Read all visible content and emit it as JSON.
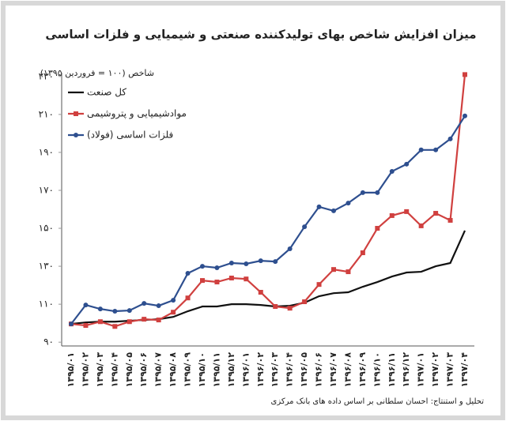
{
  "chart_data": {
    "type": "line",
    "title": "میزان افزایش شاخص بهای تولیدکننده صنعتی و شیمیایی و فلزات اساسی",
    "y_label": "شاخص (۱۰۰ = فروردین ۱۳۹۵)",
    "source": "تحلیل و استنتاج: احسان سلطانی بر اساس داده های بانک مرکزی",
    "categories": [
      "۱۳۹۵/۰۱",
      "۱۳۹۵/۰۲",
      "۱۳۹۵/۰۳",
      "۱۳۹۵/۰۴",
      "۱۳۹۵/۰۵",
      "۱۳۹۵/۰۶",
      "۱۳۹۵/۰۷",
      "۱۳۹۵/۰۸",
      "۱۳۹۵/۰۹",
      "۱۳۹۵/۱۰",
      "۱۳۹۵/۱۱",
      "۱۳۹۵/۱۲",
      "۱۳۹۶/۰۱",
      "۱۳۹۶/۰۲",
      "۱۳۹۶/۰۳",
      "۱۳۹۶/۰۴",
      "۱۳۹۶/۰۵",
      "۱۳۹۶/۰۶",
      "۱۳۹۶/۰۷",
      "۱۳۹۶/۰۸",
      "۱۳۹۶/۰۹",
      "۱۳۹۶/۱۰",
      "۱۳۹۶/۱۱",
      "۱۳۹۶/۱۲",
      "۱۳۹۷/۰۱",
      "۱۳۹۷/۰۲",
      "۱۳۹۷/۰۳",
      "۱۳۹۷/۰۴"
    ],
    "series": [
      {
        "name": "کل صنعت",
        "color": "#111111",
        "marker": "none",
        "values": [
          99.6,
          100.4,
          100.8,
          100.8,
          101.3,
          101.7,
          102.1,
          103.3,
          106.3,
          108.8,
          108.8,
          110,
          110,
          109.6,
          108.8,
          109.2,
          110.8,
          114.2,
          115.8,
          116.3,
          119.2,
          121.7,
          124.6,
          126.7,
          127.1,
          130,
          131.7,
          148.8
        ]
      },
      {
        "name": "موادشیمیایی و پتروشیمی",
        "color": "#d0403f",
        "marker": "square",
        "values": [
          99.6,
          98.8,
          100.8,
          98.3,
          100.8,
          102.1,
          101.7,
          105.8,
          113.3,
          122.5,
          121.7,
          123.8,
          123.3,
          116.3,
          108.8,
          107.9,
          111.3,
          120.4,
          128.3,
          127.1,
          137.1,
          150,
          156.7,
          158.8,
          151.3,
          157.9,
          154.2,
          231
        ]
      },
      {
        "name": "فلزات اساسی (فولاد)",
        "color": "#2e4f8f",
        "marker": "circle",
        "values": [
          99.6,
          109.6,
          107.5,
          106.3,
          106.7,
          110.4,
          109.2,
          112.1,
          126.3,
          130,
          129.2,
          131.7,
          131.3,
          132.9,
          132.5,
          139.2,
          150.8,
          161.3,
          159.2,
          163.3,
          168.8,
          168.8,
          180,
          183.8,
          191.3,
          191.3,
          197.1,
          209.2
        ]
      }
    ],
    "ylim": [
      88,
      232
    ],
    "yticks": [
      {
        "value": 90,
        "label": "۹۰"
      },
      {
        "value": 110,
        "label": "۱۱۰"
      },
      {
        "value": 130,
        "label": "۱۳۰"
      },
      {
        "value": 150,
        "label": "۱۵۰"
      },
      {
        "value": 170,
        "label": "۱۷۰"
      },
      {
        "value": 190,
        "label": "۱۹۰"
      },
      {
        "value": 210,
        "label": "۲۱۰"
      },
      {
        "value": 230,
        "label": "۲۳۰"
      }
    ],
    "grid": false
  }
}
